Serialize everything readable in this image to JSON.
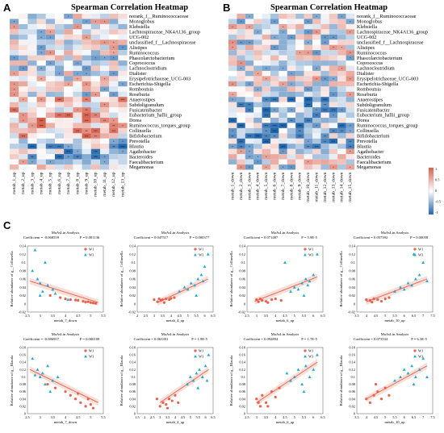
{
  "panels": {
    "a": "A",
    "b": "B",
    "c": "C"
  },
  "heatmap_title": "Spearman Correlation Heatmap",
  "colorbar": {
    "ticks": [
      "1",
      "0.5",
      "0",
      "-0.5",
      "-1"
    ],
    "colors": [
      "#2166ac",
      "#ffffff",
      "#d6604d"
    ]
  },
  "rows": [
    "norank_f__Ruminococcaceae",
    "Monoglobus",
    "Klebsiella",
    "Lachnospiraceae_NK4A136_group",
    "UCG-002",
    "unclassified_f__Lachnospiraceae",
    "Alistipes",
    "Ruminococcus",
    "Phascolarctobacterium",
    "Coprococcus",
    "Lachnoclostridium",
    "Dialister",
    "Erysipelotrichaceae_UCG-003",
    "Escherichia-Shigella",
    "Romboutsia",
    "Roseburia",
    "Anaerostipes",
    "Subdoligranulum",
    "Fusicatenibacter",
    "Eubacterium_hallii_group",
    "Dorea",
    "Ruminococcus_torques_group",
    "Collinsella",
    "Bifidobacterium",
    "Prevotella",
    "Blautia",
    "Agathobacter",
    "Bacteroides",
    "Faecalibacterium",
    "Megamonas"
  ],
  "cols_a": [
    "metab_1_up",
    "metab_2_up",
    "metab_3_up",
    "metab_4_up",
    "metab_5_up",
    "metab_6_up",
    "metab_7_up",
    "metab_8_up",
    "metab_9_up",
    "metab_10_up",
    "metab_11_up",
    "metab_12_up",
    "metab_13_up"
  ],
  "cols_b": [
    "metab_1_down",
    "metab_2_down",
    "metab_3_down",
    "metab_4_down",
    "metab_5_down",
    "metab_6_down",
    "metab_7_down",
    "metab_8_down",
    "metab_9_down",
    "metab_10_down",
    "metab_11_down",
    "metab_12_down",
    "metab_13_down",
    "metab_14_down",
    "metab_15_down"
  ],
  "scatter": {
    "title": "MaAsLin Analysis",
    "legend": [
      "W1",
      "W3"
    ],
    "colors": {
      "W1": "#e8604c",
      "W3": "#20a8d8"
    },
    "plots": [
      {
        "coef": "Coefficient = -0.068559",
        "p": "P = 0.001136",
        "xlabel": "metab_7_down",
        "ylabel": "Relative abundance of g__Collinsella",
        "xticks": [
          "2.5",
          "3",
          "3.5",
          "4",
          "4.5",
          "5",
          "5.5"
        ],
        "yticks": [
          "-0.02",
          "0",
          "0.02",
          "0.04",
          "0.06",
          "0.08",
          "0.1",
          "0.12",
          "0.14"
        ],
        "xlim": [
          2.5,
          5.5
        ],
        "ylim": [
          -0.02,
          0.14
        ],
        "line": [
          [
            2.6,
            0.055
          ],
          [
            5.3,
            0.003
          ]
        ],
        "w1": [
          [
            3.4,
            0.02
          ],
          [
            3.8,
            0.015
          ],
          [
            4.0,
            0.012
          ],
          [
            4.2,
            0.01
          ],
          [
            4.5,
            0.008
          ],
          [
            4.7,
            0.006
          ],
          [
            4.8,
            0.004
          ],
          [
            5.0,
            0.003
          ],
          [
            5.1,
            0.002
          ],
          [
            5.2,
            0.001
          ],
          [
            4.9,
            0.005
          ],
          [
            4.4,
            0.009
          ]
        ],
        "w3": [
          [
            2.7,
            0.08
          ],
          [
            2.9,
            0.06
          ],
          [
            3.0,
            0.05
          ],
          [
            3.1,
            0.03
          ],
          [
            3.3,
            0.045
          ],
          [
            3.5,
            0.035
          ],
          [
            3.2,
            0.1
          ],
          [
            3.6,
            0.025
          ],
          [
            3.0,
            0.02
          ],
          [
            4.1,
            0.01
          ],
          [
            2.8,
            0.13
          ]
        ]
      },
      {
        "coef": "Coefficient = 0.047517",
        "p": "P = 0.000377",
        "xlabel": "metab_4_up",
        "ylabel": "Relative abundance of g__Collinsella",
        "xticks": [
          "2",
          "2.5",
          "3",
          "3.5",
          "4",
          "4.5",
          "5",
          "5.5",
          "6",
          "6.5"
        ],
        "yticks": [
          "-0.02",
          "0",
          "0.02",
          "0.04",
          "0.06",
          "0.08",
          "0.1",
          "0.12",
          "0.14"
        ],
        "xlim": [
          2,
          6.5
        ],
        "ylim": [
          -0.02,
          0.14
        ],
        "line": [
          [
            3.2,
            0.003
          ],
          [
            6.2,
            0.06
          ]
        ],
        "w1": [
          [
            3.0,
            0.01
          ],
          [
            3.2,
            0.005
          ],
          [
            3.4,
            0.008
          ],
          [
            3.5,
            0.01
          ],
          [
            3.7,
            0.012
          ],
          [
            3.9,
            0.01
          ],
          [
            4.0,
            0.013
          ],
          [
            4.2,
            0.015
          ],
          [
            3.6,
            0.003
          ],
          [
            3.3,
            0.012
          ]
        ],
        "w3": [
          [
            4.5,
            0.03
          ],
          [
            4.8,
            0.04
          ],
          [
            5.0,
            0.035
          ],
          [
            5.2,
            0.05
          ],
          [
            5.4,
            0.045
          ],
          [
            5.6,
            0.06
          ],
          [
            5.8,
            0.07
          ],
          [
            6.0,
            0.09
          ],
          [
            6.2,
            0.12
          ],
          [
            5.5,
            0.02
          ],
          [
            5.9,
            0.055
          ]
        ]
      },
      {
        "coef": "Coefficient = 0.071487",
        "p": "P = 5.9E-5",
        "xlabel": "metab_6_up",
        "ylabel": "Relative abundance of g__Collinsella",
        "xticks": [
          "2.5",
          "3",
          "3.5",
          "4",
          "4.5",
          "5",
          "5.5",
          "6",
          "6.5"
        ],
        "yticks": [
          "-0.02",
          "0",
          "0.02",
          "0.04",
          "0.06",
          "0.08",
          "0.1",
          "0.12",
          "0.14"
        ],
        "xlim": [
          2.5,
          6.5
        ],
        "ylim": [
          -0.02,
          0.14
        ],
        "line": [
          [
            2.9,
            0.006
          ],
          [
            6.2,
            0.065
          ]
        ],
        "w1": [
          [
            3.0,
            0.01
          ],
          [
            3.1,
            0.005
          ],
          [
            3.3,
            0.008
          ],
          [
            3.5,
            0.006
          ],
          [
            3.8,
            0.01
          ],
          [
            4.0,
            0.012
          ],
          [
            4.3,
            0.008
          ],
          [
            3.2,
            0.012
          ],
          [
            3.6,
            0.003
          ]
        ],
        "w3": [
          [
            4.8,
            0.03
          ],
          [
            5.0,
            0.04
          ],
          [
            5.2,
            0.035
          ],
          [
            5.4,
            0.05
          ],
          [
            5.6,
            0.06
          ],
          [
            5.8,
            0.055
          ],
          [
            6.0,
            0.07
          ],
          [
            5.5,
            0.02
          ],
          [
            4.5,
            0.1
          ],
          [
            6.2,
            0.12
          ],
          [
            5.7,
            0.045
          ]
        ]
      },
      {
        "coef": "Coefficient = 0.057392",
        "p": "P = 0.00058",
        "xlabel": "metab_10_up",
        "ylabel": "Relative abundance of g__Collinsella",
        "xticks": [
          "3.5",
          "4",
          "4.5",
          "5",
          "5.5",
          "6",
          "6.5",
          "7",
          "7.5"
        ],
        "yticks": [
          "-0.02",
          "0",
          "0.02",
          "0.04",
          "0.06",
          "0.08",
          "0.1",
          "0.12",
          "0.14"
        ],
        "xlim": [
          3.5,
          7.5
        ],
        "ylim": [
          -0.02,
          0.14
        ],
        "line": [
          [
            4.0,
            0.005
          ],
          [
            7.2,
            0.06
          ]
        ],
        "w1": [
          [
            4.0,
            0.01
          ],
          [
            4.2,
            0.008
          ],
          [
            4.4,
            0.012
          ],
          [
            4.6,
            0.01
          ],
          [
            4.8,
            0.006
          ],
          [
            5.0,
            0.012
          ],
          [
            5.2,
            0.015
          ],
          [
            4.3,
            0.004
          ]
        ],
        "w3": [
          [
            5.5,
            0.03
          ],
          [
            5.8,
            0.04
          ],
          [
            6.0,
            0.035
          ],
          [
            6.2,
            0.05
          ],
          [
            6.4,
            0.045
          ],
          [
            6.6,
            0.06
          ],
          [
            6.8,
            0.07
          ],
          [
            7.0,
            0.1
          ],
          [
            6.5,
            0.12
          ],
          [
            7.2,
            0.055
          ]
        ]
      },
      {
        "coef": "Coefficient = -0.086957",
        "p": "P = 0.000109",
        "xlabel": "metab_7_down",
        "ylabel": "Relative abundance of g__Blautia",
        "xticks": [
          "2.5",
          "3",
          "3.5",
          "4",
          "4.5",
          "5",
          "5.5"
        ],
        "yticks": [
          "0",
          "0.02",
          "0.04",
          "0.06",
          "0.08",
          "0.1",
          "0.12",
          "0.14",
          "0.16",
          "0.18"
        ],
        "xlim": [
          2.5,
          5.5
        ],
        "ylim": [
          0,
          0.18
        ],
        "line": [
          [
            2.6,
            0.12
          ],
          [
            5.3,
            0.03
          ]
        ],
        "w1": [
          [
            3.3,
            0.08
          ],
          [
            3.6,
            0.07
          ],
          [
            4.0,
            0.06
          ],
          [
            4.2,
            0.05
          ],
          [
            4.4,
            0.04
          ],
          [
            4.6,
            0.03
          ],
          [
            4.8,
            0.02
          ],
          [
            5.0,
            0.025
          ],
          [
            5.1,
            0.015
          ],
          [
            4.9,
            0.04
          ],
          [
            4.5,
            0.055
          ]
        ],
        "w3": [
          [
            2.7,
            0.15
          ],
          [
            2.9,
            0.12
          ],
          [
            3.0,
            0.1
          ],
          [
            3.1,
            0.11
          ],
          [
            3.3,
            0.13
          ],
          [
            3.5,
            0.09
          ],
          [
            3.2,
            0.08
          ],
          [
            2.8,
            0.105
          ],
          [
            3.7,
            0.1
          ],
          [
            3.4,
            0.06
          ]
        ]
      },
      {
        "coef": "Coefficient = 0.063391",
        "p": "P = 1.9E-5",
        "xlabel": "metab_4_up",
        "ylabel": "Relative abundance of g__Blautia",
        "xticks": [
          "1.5",
          "2",
          "2.5",
          "3",
          "3.5",
          "4",
          "4.5",
          "5",
          "5.5",
          "6",
          "6.5"
        ],
        "yticks": [
          "0",
          "0.02",
          "0.04",
          "0.06",
          "0.08",
          "0.1",
          "0.12",
          "0.14",
          "0.16",
          "0.18"
        ],
        "xlim": [
          1.5,
          6.5
        ],
        "ylim": [
          0,
          0.18
        ],
        "line": [
          [
            3.0,
            0.03
          ],
          [
            6.2,
            0.12
          ]
        ],
        "w1": [
          [
            2.8,
            0.04
          ],
          [
            3.0,
            0.02
          ],
          [
            3.2,
            0.03
          ],
          [
            3.4,
            0.025
          ],
          [
            3.6,
            0.04
          ],
          [
            3.8,
            0.035
          ],
          [
            4.0,
            0.05
          ],
          [
            4.2,
            0.03
          ],
          [
            3.5,
            0.015
          ]
        ],
        "w3": [
          [
            4.8,
            0.08
          ],
          [
            5.0,
            0.1
          ],
          [
            5.2,
            0.09
          ],
          [
            5.4,
            0.11
          ],
          [
            5.6,
            0.12
          ],
          [
            5.8,
            0.1
          ],
          [
            6.0,
            0.13
          ],
          [
            6.2,
            0.16
          ],
          [
            5.5,
            0.07
          ],
          [
            6.1,
            0.09
          ]
        ]
      },
      {
        "coef": "Coefficient = 0.092894",
        "p": "P = 1.7E-5",
        "xlabel": "metab_6_up",
        "ylabel": "Relative abundance of g__Blautia",
        "xticks": [
          "2.5",
          "3",
          "3.5",
          "4",
          "4.5",
          "5",
          "5.5",
          "6",
          "6.5"
        ],
        "yticks": [
          "0",
          "0.02",
          "0.04",
          "0.06",
          "0.08",
          "0.1",
          "0.12",
          "0.14",
          "0.16",
          "0.18"
        ],
        "xlim": [
          2.5,
          6.5
        ],
        "ylim": [
          0,
          0.18
        ],
        "line": [
          [
            3.0,
            0.03
          ],
          [
            6.2,
            0.14
          ]
        ],
        "w1": [
          [
            3.0,
            0.04
          ],
          [
            3.2,
            0.02
          ],
          [
            3.3,
            0.05
          ],
          [
            3.5,
            0.03
          ],
          [
            3.8,
            0.06
          ],
          [
            4.0,
            0.045
          ],
          [
            4.2,
            0.07
          ],
          [
            3.6,
            0.02
          ],
          [
            3.1,
            0.03
          ]
        ],
        "w3": [
          [
            4.8,
            0.09
          ],
          [
            5.0,
            0.1
          ],
          [
            5.2,
            0.12
          ],
          [
            5.4,
            0.08
          ],
          [
            5.6,
            0.13
          ],
          [
            5.8,
            0.1
          ],
          [
            6.0,
            0.12
          ],
          [
            6.2,
            0.16
          ],
          [
            5.5,
            0.06
          ],
          [
            4.6,
            0.11
          ]
        ]
      },
      {
        "coef": "Coefficient = 0.073534",
        "p": "P = 6.3E-5",
        "xlabel": "metab_10_up",
        "ylabel": "Relative abundance of g__Blautia",
        "xticks": [
          "3.5",
          "4",
          "4.5",
          "5",
          "5.5",
          "6",
          "6.5",
          "7",
          "7.5"
        ],
        "yticks": [
          "0",
          "0.02",
          "0.04",
          "0.06",
          "0.08",
          "0.1",
          "0.12",
          "0.14",
          "0.16",
          "0.18"
        ],
        "xlim": [
          3.5,
          7.5
        ],
        "ylim": [
          0,
          0.18
        ],
        "line": [
          [
            4.0,
            0.04
          ],
          [
            7.2,
            0.13
          ]
        ],
        "w1": [
          [
            4.0,
            0.04
          ],
          [
            4.2,
            0.03
          ],
          [
            4.4,
            0.05
          ],
          [
            4.6,
            0.06
          ],
          [
            4.8,
            0.04
          ],
          [
            5.0,
            0.07
          ],
          [
            5.2,
            0.05
          ],
          [
            4.5,
            0.08
          ]
        ],
        "w3": [
          [
            5.5,
            0.09
          ],
          [
            5.8,
            0.1
          ],
          [
            6.0,
            0.12
          ],
          [
            6.2,
            0.11
          ],
          [
            6.4,
            0.13
          ],
          [
            6.6,
            0.1
          ],
          [
            6.8,
            0.12
          ],
          [
            7.0,
            0.15
          ],
          [
            6.5,
            0.08
          ],
          [
            7.2,
            0.1
          ]
        ]
      }
    ]
  }
}
